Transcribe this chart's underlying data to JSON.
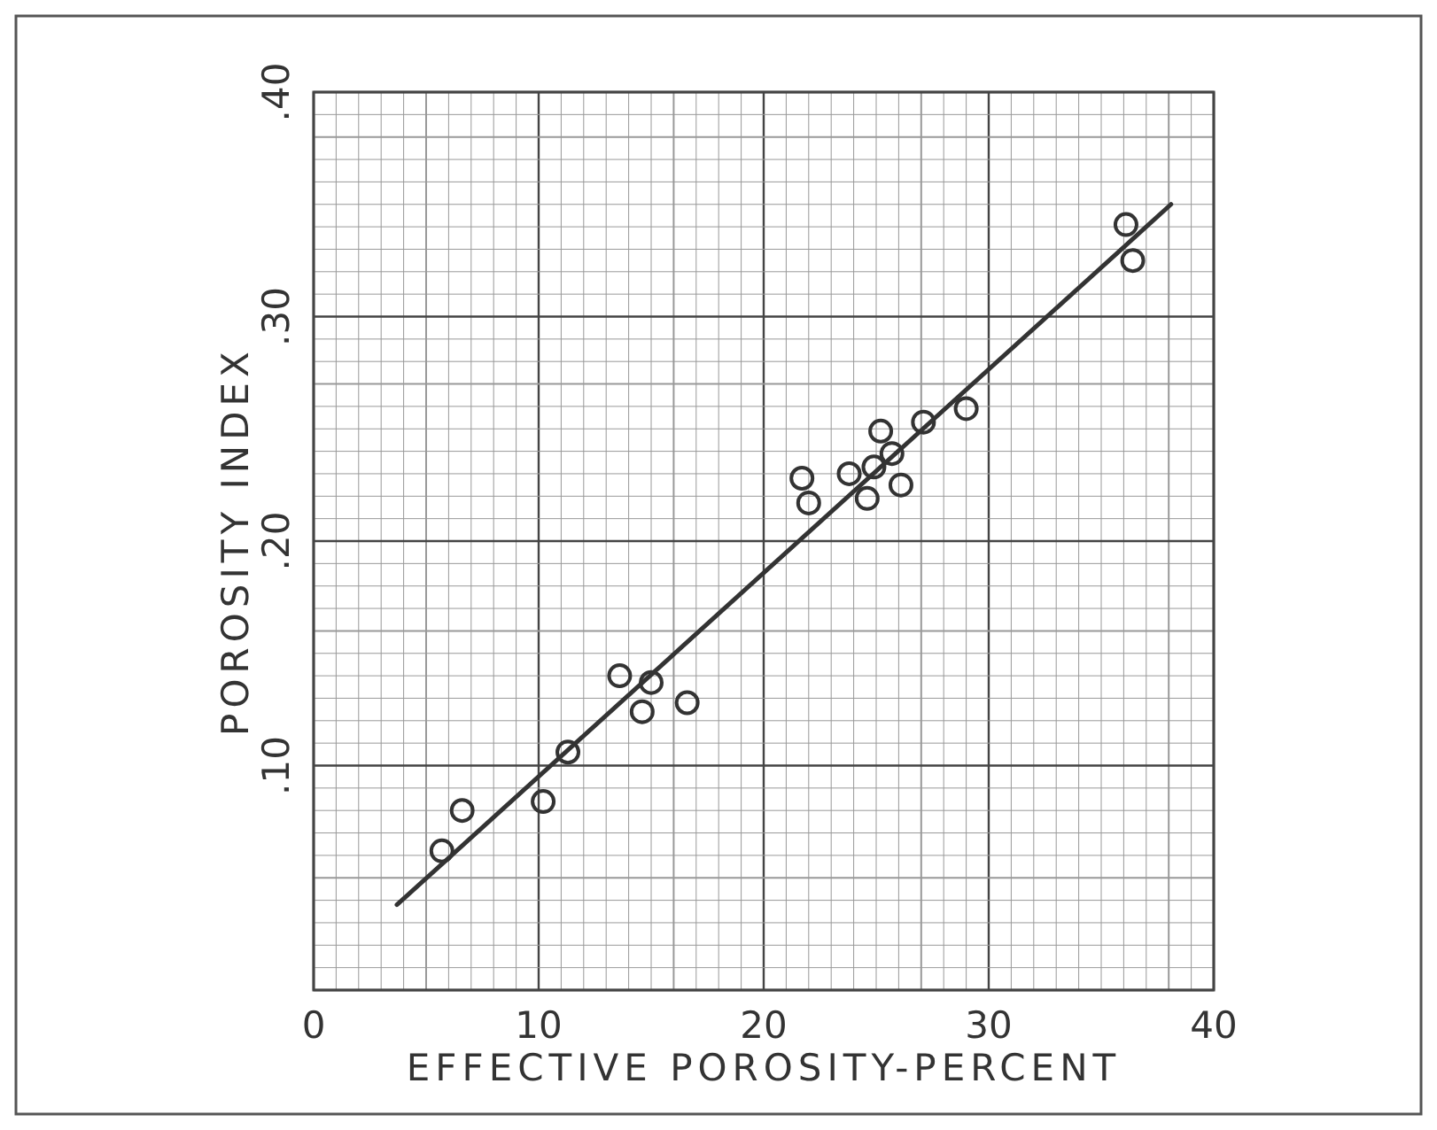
{
  "chart_data": {
    "type": "scatter",
    "xlabel": "EFFECTIVE POROSITY-PERCENT",
    "ylabel": "POROSITY INDEX",
    "xlim": [
      0,
      40
    ],
    "ylim": [
      0,
      0.4
    ],
    "xticks": [
      0,
      10,
      20,
      30,
      40
    ],
    "yticks": [
      {
        "value": 0,
        "label": null
      },
      {
        "value": 0.1,
        "label": ".10"
      },
      {
        "value": 0.2,
        "label": ".20"
      },
      {
        "value": 0.3,
        "label": ".30"
      },
      {
        "value": 0.4,
        "label": ".40"
      }
    ],
    "grid": true,
    "series": [
      {
        "color": "#333333",
        "marker": "circle",
        "x": [
          5.7,
          6.6,
          10.2,
          11.3,
          13.6,
          15.0,
          14.6,
          16.6,
          21.7,
          22.0,
          23.8,
          24.6,
          24.9,
          25.2,
          25.7,
          26.1,
          27.1,
          29.0,
          36.1,
          36.4
        ],
        "values": [
          0.062,
          0.08,
          0.084,
          0.106,
          0.14,
          0.137,
          0.124,
          0.128,
          0.228,
          0.217,
          0.23,
          0.219,
          0.233,
          0.249,
          0.239,
          0.225,
          0.253,
          0.259,
          0.341,
          0.325
        ]
      },
      {
        "type": "line",
        "marker": "none",
        "color": "#333333",
        "x": [
          3.7,
          38.1
        ],
        "values": [
          0.038,
          0.35
        ]
      }
    ]
  }
}
